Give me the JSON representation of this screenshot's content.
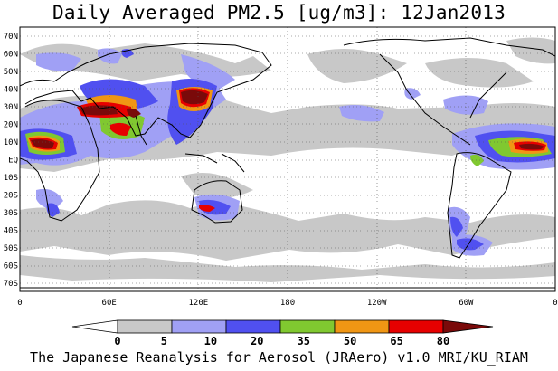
{
  "title": "Daily Averaged PM2.5 [ug/m3]: 12Jan2013",
  "footer": "The Japanese Reanalysis for Aerosol (JRAero) v1.0 MRI/KU_RIAM",
  "latitude_labels": [
    "70N",
    "60N",
    "50N",
    "40N",
    "30N",
    "20N",
    "10N",
    "EQ",
    "10S",
    "20S",
    "30S",
    "40S",
    "50S",
    "60S",
    "70S"
  ],
  "longitude_labels": [
    "0",
    "60E",
    "120E",
    "180",
    "120W",
    "60W",
    "0"
  ],
  "colorbar": {
    "labels": [
      "0",
      "5",
      "10",
      "20",
      "35",
      "50",
      "65",
      "80"
    ],
    "colors": [
      "#ffffff",
      "#c8c8c8",
      "#a0a0f5",
      "#5050f0",
      "#80c830",
      "#f09614",
      "#e60000",
      "#7a0a0a"
    ]
  },
  "map": {
    "projection": "cylindrical equidistant",
    "lon_range": [
      0,
      360
    ],
    "lat_range": [
      -75,
      75
    ],
    "grid": "dotted, every 10 degrees latitude and 60 degrees longitude"
  }
}
